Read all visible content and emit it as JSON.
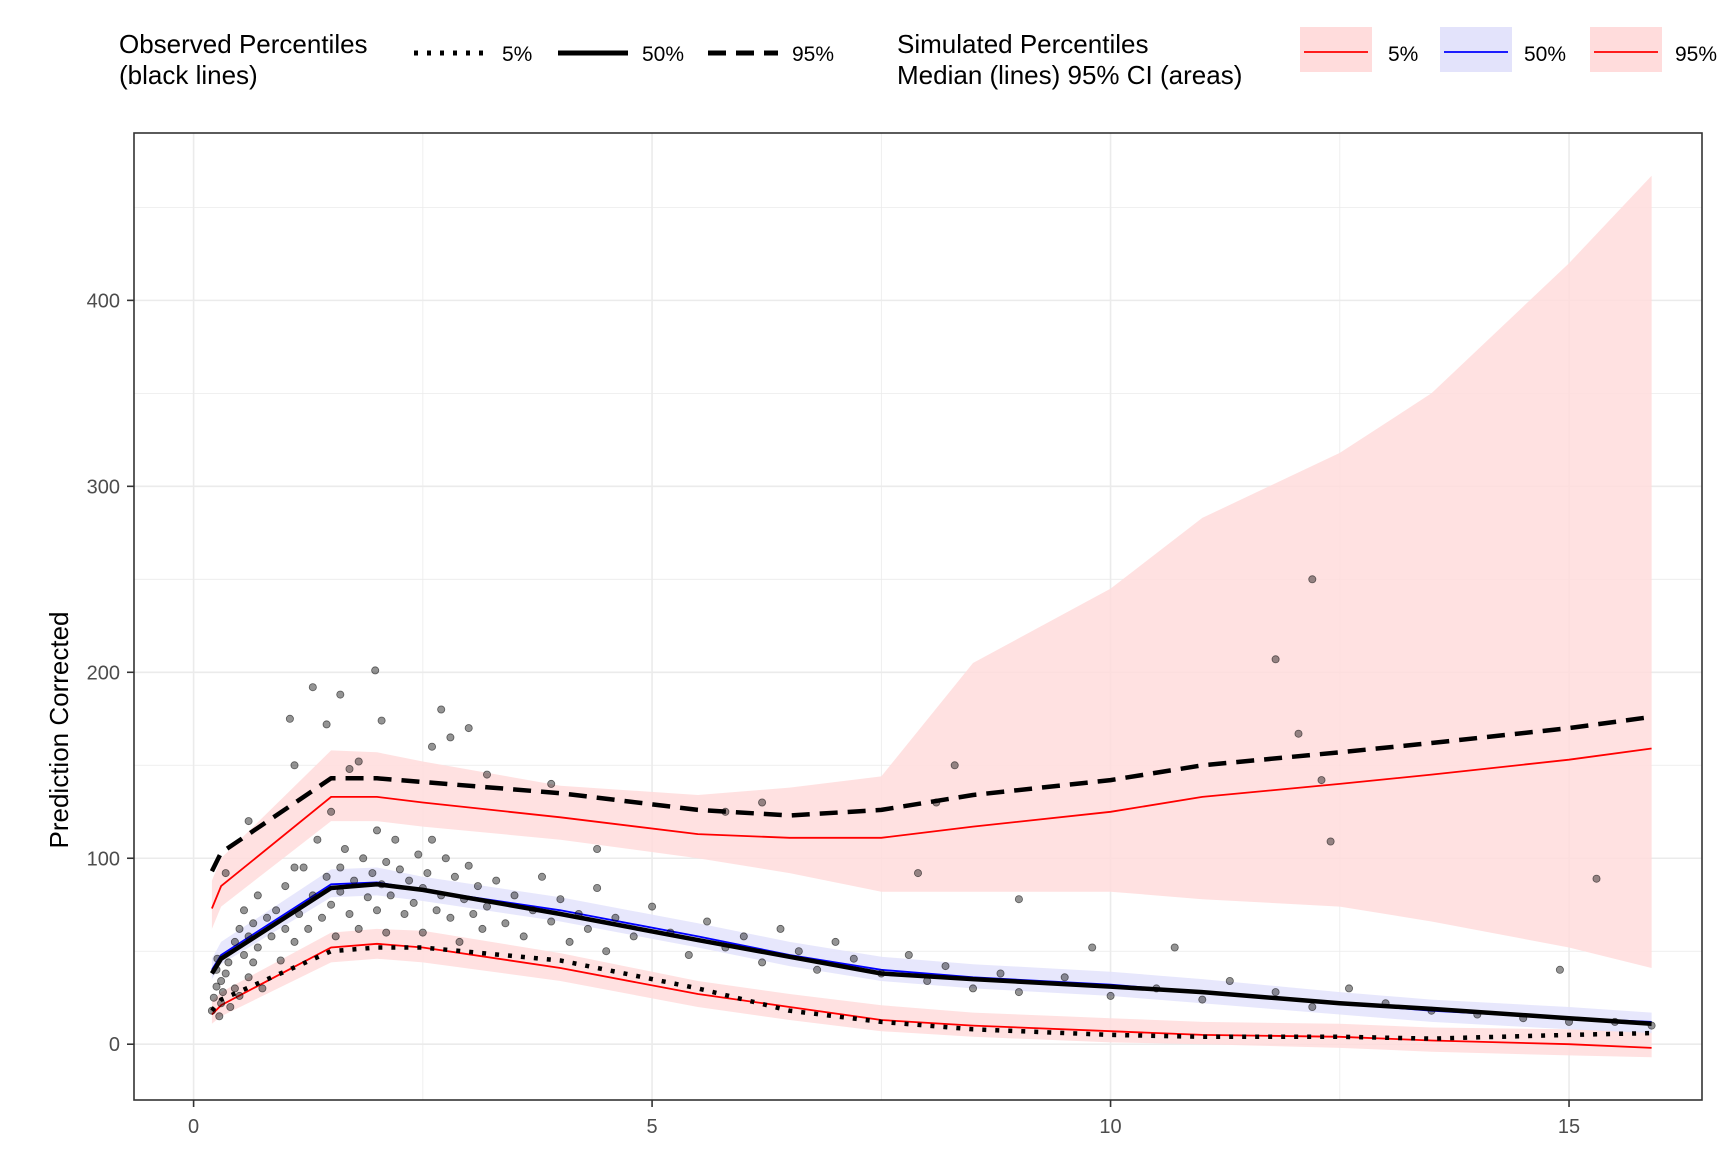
{
  "chart_data": {
    "type": "line",
    "xlabel": "",
    "ylabel": "Prediction Corrected",
    "xlim": [
      -0.65,
      16.45
    ],
    "ylim": [
      -30,
      490
    ],
    "x_ticks": [
      0,
      5,
      10,
      15
    ],
    "y_ticks": [
      0,
      100,
      200,
      300,
      400
    ],
    "grid": true,
    "legend_position": "top",
    "legend": {
      "observed": {
        "title_line1": "Observed Percentiles",
        "title_line2": "(black lines)",
        "entries": [
          {
            "label": "5%",
            "style": "dotted",
            "color": "#000000"
          },
          {
            "label": "50%",
            "style": "solid",
            "color": "#000000"
          },
          {
            "label": "95%",
            "style": "dashed",
            "color": "#000000"
          }
        ]
      },
      "simulated": {
        "title_line1": "Simulated Percentiles",
        "title_line2": "Median (lines) 95% CI (areas)",
        "entries": [
          {
            "label": "5%",
            "line_color": "#ff0000",
            "fill_color": "#ffdcdc"
          },
          {
            "label": "50%",
            "line_color": "#0000ff",
            "fill_color": "#e3e3fb"
          },
          {
            "label": "95%",
            "line_color": "#ff0000",
            "fill_color": "#ffdcdc"
          }
        ]
      }
    },
    "x_bins": [
      0.2,
      0.3,
      1.5,
      2.0,
      2.5,
      4.0,
      5.5,
      6.5,
      7.5,
      8.5,
      10.0,
      11.0,
      12.5,
      13.5,
      15.0,
      15.9
    ],
    "simulated": [
      {
        "name": "5%",
        "color": "#ff0000",
        "median": [
          16,
          21,
          52,
          54,
          52,
          41,
          27,
          20,
          13,
          10,
          7,
          5,
          4,
          2,
          0,
          -2
        ],
        "ci_low": [
          11,
          15,
          44,
          46,
          44,
          34,
          20,
          13,
          7,
          4,
          1,
          0,
          -2,
          -4,
          -6,
          -7
        ],
        "ci_high": [
          23,
          28,
          60,
          62,
          61,
          49,
          34,
          27,
          21,
          17,
          14,
          12,
          11,
          9,
          8,
          7
        ]
      },
      {
        "name": "50%",
        "color": "#0000ff",
        "median": [
          40,
          48,
          86,
          87,
          83,
          72,
          58,
          48,
          40,
          36,
          32,
          28,
          22,
          18,
          14,
          12
        ],
        "ci_low": [
          35,
          43,
          79,
          80,
          77,
          66,
          52,
          42,
          34,
          30,
          26,
          22,
          16,
          12,
          8,
          6
        ],
        "ci_high": [
          46,
          55,
          94,
          95,
          90,
          79,
          65,
          55,
          47,
          43,
          39,
          35,
          28,
          24,
          20,
          17
        ]
      },
      {
        "name": "95%",
        "color": "#ff0000",
        "median": [
          73,
          85,
          133,
          133,
          130,
          122,
          113,
          111,
          111,
          117,
          125,
          133,
          140,
          145,
          153,
          159
        ],
        "ci_low": [
          62,
          74,
          120,
          120,
          117,
          110,
          100,
          92,
          82,
          82,
          82,
          78,
          74,
          66,
          52,
          41
        ],
        "ci_high": [
          88,
          100,
          158,
          157,
          152,
          139,
          134,
          138,
          144,
          205,
          245,
          283,
          318,
          350,
          420,
          467
        ]
      }
    ],
    "observed": [
      {
        "name": "5%",
        "style": "dotted",
        "values": [
          18,
          24,
          50,
          52,
          52,
          45,
          30,
          18,
          12,
          8,
          5,
          4,
          4,
          3,
          5,
          6
        ]
      },
      {
        "name": "50%",
        "style": "solid",
        "values": [
          38,
          46,
          84,
          86,
          83,
          70,
          56,
          47,
          38,
          35,
          31,
          28,
          22,
          19,
          14,
          11
        ]
      },
      {
        "name": "95%",
        "style": "dashed",
        "values": [
          93,
          103,
          143,
          143,
          141,
          135,
          126,
          123,
          126,
          134,
          142,
          150,
          157,
          162,
          170,
          176
        ]
      }
    ],
    "points": [
      [
        0.2,
        18
      ],
      [
        0.22,
        25
      ],
      [
        0.25,
        31
      ],
      [
        0.25,
        40
      ],
      [
        0.26,
        46
      ],
      [
        0.28,
        15
      ],
      [
        0.3,
        22
      ],
      [
        0.3,
        34
      ],
      [
        0.32,
        28
      ],
      [
        0.35,
        38
      ],
      [
        0.38,
        44
      ],
      [
        0.4,
        20
      ],
      [
        0.45,
        30
      ],
      [
        0.45,
        55
      ],
      [
        0.5,
        62
      ],
      [
        0.5,
        26
      ],
      [
        0.55,
        48
      ],
      [
        0.55,
        72
      ],
      [
        0.6,
        58
      ],
      [
        0.6,
        36
      ],
      [
        0.65,
        65
      ],
      [
        0.65,
        44
      ],
      [
        0.7,
        52
      ],
      [
        0.7,
        80
      ],
      [
        0.75,
        30
      ],
      [
        0.8,
        68
      ],
      [
        0.85,
        58
      ],
      [
        0.9,
        72
      ],
      [
        0.95,
        45
      ],
      [
        1.0,
        62
      ],
      [
        1.0,
        85
      ],
      [
        1.05,
        175
      ],
      [
        1.1,
        150
      ],
      [
        1.1,
        55
      ],
      [
        1.15,
        70
      ],
      [
        1.2,
        95
      ],
      [
        1.25,
        62
      ],
      [
        1.3,
        80
      ],
      [
        1.35,
        110
      ],
      [
        1.4,
        68
      ],
      [
        1.45,
        90
      ],
      [
        1.5,
        125
      ],
      [
        1.5,
        75
      ],
      [
        1.55,
        58
      ],
      [
        1.6,
        95
      ],
      [
        1.6,
        82
      ],
      [
        1.65,
        105
      ],
      [
        1.7,
        70
      ],
      [
        1.75,
        88
      ],
      [
        1.8,
        152
      ],
      [
        1.8,
        62
      ],
      [
        1.85,
        100
      ],
      [
        1.9,
        79
      ],
      [
        1.95,
        92
      ],
      [
        2.0,
        115
      ],
      [
        2.0,
        72
      ],
      [
        2.05,
        86
      ],
      [
        2.1,
        98
      ],
      [
        2.1,
        60
      ],
      [
        2.15,
        80
      ],
      [
        2.2,
        110
      ],
      [
        2.25,
        94
      ],
      [
        2.3,
        70
      ],
      [
        2.35,
        88
      ],
      [
        2.4,
        76
      ],
      [
        2.45,
        102
      ],
      [
        2.5,
        84
      ],
      [
        2.5,
        60
      ],
      [
        2.55,
        92
      ],
      [
        2.6,
        110
      ],
      [
        2.65,
        72
      ],
      [
        2.7,
        80
      ],
      [
        2.75,
        100
      ],
      [
        2.8,
        68
      ],
      [
        2.85,
        90
      ],
      [
        2.9,
        55
      ],
      [
        2.95,
        78
      ],
      [
        3.0,
        96
      ],
      [
        3.05,
        70
      ],
      [
        3.1,
        85
      ],
      [
        3.15,
        62
      ],
      [
        3.2,
        74
      ],
      [
        3.3,
        88
      ],
      [
        3.4,
        65
      ],
      [
        3.5,
        80
      ],
      [
        3.6,
        58
      ],
      [
        3.7,
        72
      ],
      [
        3.8,
        90
      ],
      [
        3.9,
        66
      ],
      [
        4.0,
        78
      ],
      [
        4.1,
        55
      ],
      [
        4.2,
        70
      ],
      [
        4.3,
        62
      ],
      [
        4.4,
        84
      ],
      [
        4.5,
        50
      ],
      [
        4.6,
        68
      ],
      [
        4.8,
        58
      ],
      [
        5.0,
        74
      ],
      [
        5.2,
        60
      ],
      [
        5.4,
        48
      ],
      [
        5.6,
        66
      ],
      [
        5.8,
        52
      ],
      [
        6.0,
        58
      ],
      [
        6.2,
        44
      ],
      [
        6.4,
        62
      ],
      [
        6.6,
        50
      ],
      [
        6.8,
        40
      ],
      [
        7.0,
        55
      ],
      [
        7.2,
        46
      ],
      [
        7.5,
        38
      ],
      [
        7.8,
        48
      ],
      [
        8.0,
        34
      ],
      [
        8.2,
        42
      ],
      [
        8.5,
        30
      ],
      [
        8.8,
        38
      ],
      [
        9.0,
        28
      ],
      [
        9.5,
        36
      ],
      [
        10.0,
        26
      ],
      [
        10.5,
        30
      ],
      [
        11.0,
        24
      ],
      [
        11.3,
        34
      ],
      [
        11.8,
        28
      ],
      [
        12.2,
        20
      ],
      [
        12.6,
        30
      ],
      [
        13.0,
        22
      ],
      [
        13.5,
        18
      ],
      [
        14.0,
        16
      ],
      [
        14.5,
        14
      ],
      [
        15.0,
        12
      ],
      [
        15.5,
        12
      ],
      [
        15.9,
        10
      ],
      [
        1.3,
        192
      ],
      [
        1.6,
        188
      ],
      [
        1.45,
        172
      ],
      [
        1.98,
        201
      ],
      [
        2.05,
        174
      ],
      [
        2.7,
        180
      ],
      [
        3.0,
        170
      ],
      [
        2.8,
        165
      ],
      [
        12.2,
        250
      ],
      [
        11.8,
        207
      ],
      [
        12.05,
        167
      ],
      [
        12.3,
        142
      ],
      [
        12.4,
        109
      ],
      [
        15.3,
        89
      ],
      [
        8.3,
        150
      ],
      [
        8.1,
        130
      ],
      [
        7.9,
        92
      ],
      [
        9.0,
        78
      ],
      [
        9.8,
        52
      ],
      [
        10.7,
        52
      ],
      [
        14.9,
        40
      ],
      [
        6.2,
        130
      ],
      [
        5.8,
        125
      ],
      [
        4.4,
        105
      ],
      [
        3.9,
        140
      ],
      [
        3.2,
        145
      ],
      [
        2.6,
        160
      ],
      [
        1.7,
        148
      ],
      [
        1.1,
        95
      ],
      [
        0.6,
        120
      ],
      [
        0.35,
        92
      ]
    ]
  }
}
